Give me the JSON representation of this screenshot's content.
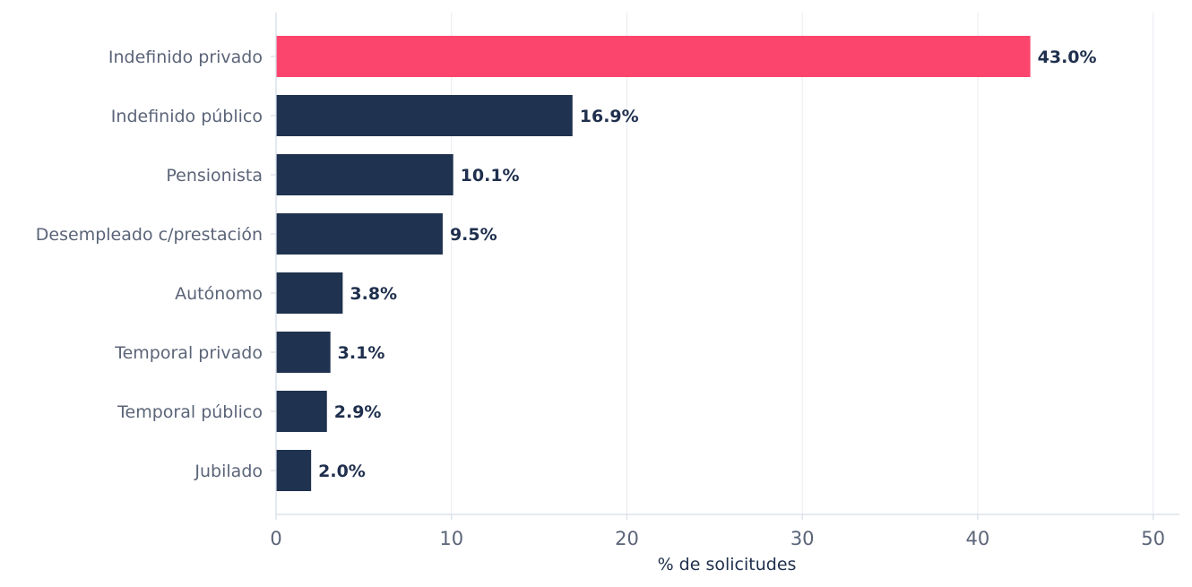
{
  "chart_data": {
    "type": "bar",
    "orientation": "horizontal",
    "title": "",
    "xlabel": "% de solicitudes",
    "ylabel": "",
    "xlim": [
      0,
      51.5
    ],
    "x_ticks": [
      0,
      10,
      20,
      30,
      40,
      50
    ],
    "grid": "vertical",
    "legend": "none",
    "categories": [
      "Indefinido privado",
      "Indefinido público",
      "Pensionista",
      "Desempleado c/prestación",
      "Autónomo",
      "Temporal privado",
      "Temporal público",
      "Jubilado"
    ],
    "values": [
      43.0,
      16.9,
      10.1,
      9.5,
      3.8,
      3.1,
      2.9,
      2.0
    ],
    "value_labels": [
      "43.0%",
      "16.9%",
      "10.1%",
      "9.5%",
      "3.8%",
      "3.1%",
      "2.9%",
      "2.0%"
    ],
    "highlight_index": 0,
    "colors": {
      "highlight": "#fc456d",
      "bar": "#1f324f",
      "grid": "#e8ecf2",
      "axis": "#d5dde8",
      "tick_text": "#5b6478",
      "value_text": "#1f2f4d"
    }
  }
}
